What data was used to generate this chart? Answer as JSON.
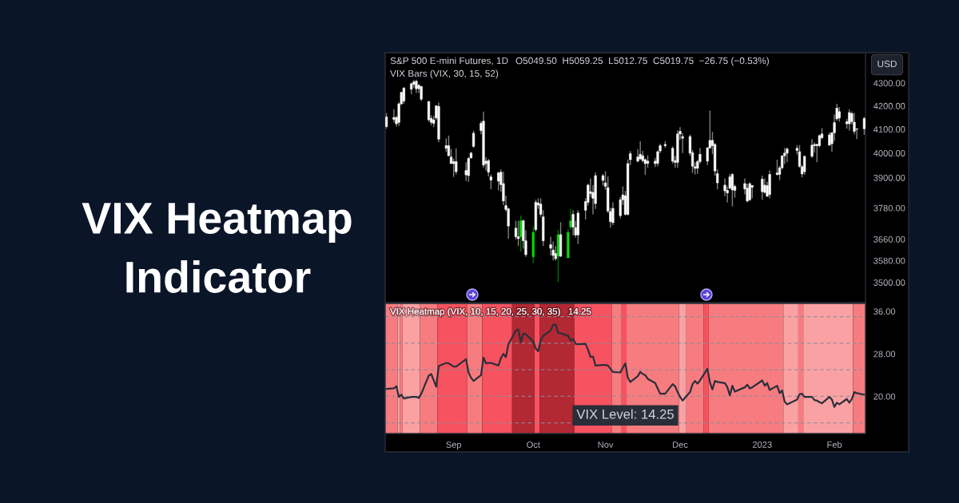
{
  "chart_data": [
    {
      "type": "other",
      "title": "VIX Heatmap Indicator"
    },
    {
      "type": "candlestick",
      "title": "S&P 500 E-mini Futures, 1D",
      "subtitle": "VIX Bars (VIX, 30, 15, 52)",
      "annotations": [
        "O5049.50  H5059.25  L5012.75  C5019.75  −26.75 (−0.53%)",
        "USD"
      ],
      "x": [
        "2022-08-05",
        "2022-08-08",
        "2022-08-09",
        "2022-08-10",
        "2022-08-11",
        "2022-08-12",
        "2022-08-15",
        "2022-08-16",
        "2022-08-17",
        "2022-08-18",
        "2022-08-19",
        "2022-08-22",
        "2022-08-23",
        "2022-08-24",
        "2022-08-25",
        "2022-08-26",
        "2022-08-29",
        "2022-08-30",
        "2022-08-31",
        "2022-09-01",
        "2022-09-02",
        "2022-09-06",
        "2022-09-07",
        "2022-09-08",
        "2022-09-09",
        "2022-09-12",
        "2022-09-13",
        "2022-09-14",
        "2022-09-15",
        "2022-09-16",
        "2022-09-19",
        "2022-09-20",
        "2022-09-21",
        "2022-09-22",
        "2022-09-23",
        "2022-09-26",
        "2022-09-27",
        "2022-09-28",
        "2022-09-29",
        "2022-09-30",
        "2022-10-03",
        "2022-10-04",
        "2022-10-05",
        "2022-10-06",
        "2022-10-07",
        "2022-10-10",
        "2022-10-11",
        "2022-10-12",
        "2022-10-13",
        "2022-10-14",
        "2022-10-17",
        "2022-10-18",
        "2022-10-19",
        "2022-10-20",
        "2022-10-21",
        "2022-10-24",
        "2022-10-25",
        "2022-10-26",
        "2022-10-27",
        "2022-10-28",
        "2022-10-31",
        "2022-11-01",
        "2022-11-02",
        "2022-11-03",
        "2022-11-04",
        "2022-11-07",
        "2022-11-08",
        "2022-11-09",
        "2022-11-10",
        "2022-11-11",
        "2022-11-14",
        "2022-11-15",
        "2022-11-16",
        "2022-11-17",
        "2022-11-18",
        "2022-11-21",
        "2022-11-22",
        "2022-11-23",
        "2022-11-25",
        "2022-11-28",
        "2022-11-29",
        "2022-11-30",
        "2022-12-01",
        "2022-12-02",
        "2022-12-05",
        "2022-12-06",
        "2022-12-07",
        "2022-12-08",
        "2022-12-09",
        "2022-12-12",
        "2022-12-13",
        "2022-12-14",
        "2022-12-15",
        "2022-12-16",
        "2022-12-19",
        "2022-12-20",
        "2022-12-21",
        "2022-12-22",
        "2022-12-23",
        "2022-12-27",
        "2022-12-28",
        "2022-12-29",
        "2022-12-30",
        "2023-01-03",
        "2023-01-04",
        "2023-01-05",
        "2023-01-06",
        "2023-01-09",
        "2023-01-10",
        "2023-01-11",
        "2023-01-12",
        "2023-01-13",
        "2023-01-17",
        "2023-01-18",
        "2023-01-19",
        "2023-01-20",
        "2023-01-23",
        "2023-01-24",
        "2023-01-25",
        "2023-01-26",
        "2023-01-27",
        "2023-01-30",
        "2023-01-31",
        "2023-02-01",
        "2023-02-02",
        "2023-02-03",
        "2023-02-06",
        "2023-02-07",
        "2023-02-08",
        "2023-02-09",
        "2023-02-10",
        "2023-02-13"
      ],
      "ohlc": [
        [
          4111,
          4169,
          4102,
          4152
        ],
        [
          4142,
          4186,
          4129,
          4150
        ],
        [
          4123,
          4157,
          4111,
          4150
        ],
        [
          4129,
          4215,
          4114,
          4209
        ],
        [
          4209,
          4261,
          4203,
          4259
        ],
        [
          4221,
          4282,
          4209,
          4278
        ],
        [
          4273,
          4302,
          4250,
          4297
        ],
        [
          4294,
          4314,
          4280,
          4305
        ],
        [
          4275,
          4314,
          4256,
          4308
        ],
        [
          4275,
          4297,
          4256,
          4290
        ],
        [
          4229,
          4287,
          4221,
          4285
        ],
        [
          4140,
          4221,
          4132,
          4219
        ],
        [
          4129,
          4159,
          4117,
          4146
        ],
        [
          4125,
          4157,
          4109,
          4140
        ],
        [
          4148,
          4203,
          4140,
          4200
        ],
        [
          4058,
          4215,
          4045,
          4198
        ],
        [
          4020,
          4062,
          4006,
          4031
        ],
        [
          3989,
          4073,
          3989,
          4031
        ],
        [
          3957,
          4017,
          3957,
          3984
        ],
        [
          3957,
          3978,
          3903,
          3965
        ],
        [
          3924,
          4020,
          3913,
          3965
        ],
        [
          3911,
          3962,
          3886,
          3929
        ],
        [
          3908,
          3984,
          3883,
          3978
        ],
        [
          3980,
          4006,
          3978,
          4000
        ],
        [
          4028,
          4094,
          4022,
          4083
        ],
        [
          4094,
          4134,
          4078,
          4125
        ],
        [
          3951,
          4175,
          3940,
          4134
        ],
        [
          3957,
          3984,
          3929,
          3967
        ],
        [
          3922,
          3976,
          3905,
          3969
        ],
        [
          3890,
          3913,
          3854,
          3903
        ],
        [
          3886,
          3924,
          3849,
          3919
        ],
        [
          3872,
          3933,
          3844,
          3922
        ],
        [
          3807,
          3924,
          3791,
          3876
        ],
        [
          3774,
          3828,
          3766,
          3789
        ],
        [
          3710,
          3781,
          3662,
          3776
        ],
        [
          3669,
          3730,
          3659,
          3702
        ],
        [
          3662,
          3730,
          3634,
          3669
        ],
        [
          3669,
          3750,
          3614,
          3730
        ],
        [
          3654,
          3735,
          3624,
          3730
        ],
        [
          3602,
          3694,
          3594,
          3654
        ],
        [
          3594,
          3709,
          3570,
          3686
        ],
        [
          3696,
          3812,
          3689,
          3802
        ],
        [
          3791,
          3818,
          3776,
          3799
        ],
        [
          3755,
          3818,
          3745,
          3795
        ],
        [
          3654,
          3771,
          3634,
          3745
        ],
        [
          3626,
          3669,
          3599,
          3639
        ],
        [
          3599,
          3652,
          3580,
          3619
        ],
        [
          3587,
          3634,
          3580,
          3606
        ],
        [
          3596,
          3696,
          3501,
          3677
        ],
        [
          3596,
          3725,
          3594,
          3677
        ],
        [
          3590,
          3699,
          3589,
          3686
        ],
        [
          3706,
          3776,
          3696,
          3730
        ],
        [
          3706,
          3771,
          3674,
          3755
        ],
        [
          3676,
          3730,
          3666,
          3704
        ],
        [
          3676,
          3771,
          3642,
          3760
        ],
        [
          3771,
          3818,
          3735,
          3805
        ],
        [
          3802,
          3876,
          3789,
          3870
        ],
        [
          3837,
          3897,
          3823,
          3844
        ],
        [
          3818,
          3870,
          3755,
          3841
        ],
        [
          3797,
          3921,
          3776,
          3908
        ],
        [
          3889,
          3915,
          3868,
          3908
        ],
        [
          3865,
          3926,
          3851,
          3879
        ],
        [
          3768,
          3905,
          3760,
          3860
        ],
        [
          3727,
          3781,
          3704,
          3766
        ],
        [
          3723,
          3802,
          3713,
          3778
        ],
        [
          3750,
          3823,
          3740,
          3812
        ],
        [
          3812,
          3865,
          3792,
          3831
        ],
        [
          3755,
          3847,
          3750,
          3828
        ],
        [
          3755,
          3973,
          3750,
          3957
        ],
        [
          3973,
          4008,
          3951,
          3998
        ],
        [
          3967,
          4017,
          3962,
          3984
        ],
        [
          3976,
          4050,
          3973,
          3995
        ],
        [
          3969,
          4009,
          3962,
          3989
        ],
        [
          3957,
          3978,
          3911,
          3973
        ],
        [
          3958,
          3991,
          3940,
          3967
        ],
        [
          3957,
          3980,
          3943,
          3967
        ],
        [
          3958,
          4011,
          3946,
          4006
        ],
        [
          4009,
          4039,
          4000,
          4031
        ],
        [
          4031,
          4050,
          4022,
          4036
        ],
        [
          3967,
          4028,
          3957,
          4020
        ],
        [
          3962,
          3989,
          3940,
          3969
        ],
        [
          3962,
          4094,
          3940,
          4080
        ],
        [
          4080,
          4109,
          4056,
          4091
        ],
        [
          4062,
          4083,
          4000,
          4069
        ],
        [
          4000,
          4078,
          3989,
          4069
        ],
        [
          3946,
          4013,
          3919,
          4002
        ],
        [
          3938,
          3962,
          3913,
          3944
        ],
        [
          3938,
          3973,
          3915,
          3965
        ],
        [
          3965,
          4022,
          3957,
          3995
        ],
        [
          3967,
          4024,
          3951,
          4022
        ],
        [
          4022,
          4180,
          4017,
          4053
        ],
        [
          4031,
          4089,
          3995,
          4053
        ],
        [
          3927,
          4042,
          3908,
          4036
        ],
        [
          3879,
          3933,
          3854,
          3916
        ],
        [
          3847,
          3897,
          3826,
          3870
        ],
        [
          3839,
          3865,
          3802,
          3849
        ],
        [
          3858,
          3915,
          3854,
          3903
        ],
        [
          3851,
          3918,
          3786,
          3913
        ],
        [
          3849,
          3872,
          3820,
          3865
        ],
        [
          3855,
          3897,
          3833,
          3876
        ],
        [
          3807,
          3876,
          3802,
          3858
        ],
        [
          3812,
          3881,
          3807,
          3876
        ],
        [
          3862,
          3870,
          3818,
          3868
        ],
        [
          3844,
          3908,
          3812,
          3894
        ],
        [
          3841,
          3897,
          3836,
          3870
        ],
        [
          3826,
          3883,
          3823,
          3868
        ],
        [
          3833,
          3929,
          3818,
          3913
        ],
        [
          3913,
          3973,
          3908,
          3919
        ],
        [
          3913,
          3948,
          3890,
          3940
        ],
        [
          3940,
          3991,
          3933,
          3989
        ],
        [
          3989,
          4022,
          3955,
          4000
        ],
        [
          4000,
          4024,
          3962,
          4017
        ],
        [
          4011,
          4033,
          3995,
          4020
        ],
        [
          3946,
          4033,
          3940,
          4006
        ],
        [
          3915,
          3951,
          3901,
          3944
        ],
        [
          3924,
          3989,
          3911,
          3987
        ],
        [
          3987,
          4058,
          3980,
          4033
        ],
        [
          4031,
          4045,
          4002,
          4036
        ],
        [
          4031,
          4039,
          3962,
          4036
        ],
        [
          4031,
          4078,
          4024,
          4073
        ],
        [
          4064,
          4105,
          4058,
          4080
        ],
        [
          4033,
          4087,
          4031,
          4076
        ],
        [
          4039,
          4087,
          4006,
          4085
        ],
        [
          4085,
          4163,
          4051,
          4128
        ],
        [
          4144,
          4209,
          4136,
          4190
        ],
        [
          4148,
          4195,
          4132,
          4175
        ],
        [
          4123,
          4143,
          4102,
          4132
        ],
        [
          4123,
          4186,
          4094,
          4171
        ],
        [
          4132,
          4175,
          4121,
          4167
        ],
        [
          4091,
          4169,
          4078,
          4130
        ],
        [
          4100,
          4102,
          4058,
          4102
        ],
        [
          4102,
          4152,
          4076,
          4146
        ]
      ],
      "colors": [
        "#ffffff",
        "#ffffff",
        "#ffffff",
        "#ffffff",
        "#ffffff",
        "#ffffff",
        "#ffffff",
        "#ffffff",
        "#ffffff",
        "#ffffff",
        "#ffffff",
        "#ffffff",
        "#ffffff",
        "#ffffff",
        "#ffffff",
        "#ffffff",
        "#ffffff",
        "#ffffff",
        "#ffffff",
        "#ffffff",
        "#ffffff",
        "#ffffff",
        "#ffffff",
        "#ffffff",
        "#ffffff",
        "#ffffff",
        "#ffffff",
        "#ffffff",
        "#ffffff",
        "#ffffff",
        "#ffffff",
        "#ffffff",
        "#ffffff",
        "#ffffff",
        "#ffffff",
        "#ffffff",
        "#ffffff",
        "#00dd00",
        "#ffffff",
        "#ffffff",
        "#00dd00",
        "#ffffff",
        "#ffffff",
        "#ffffff",
        "#ffffff",
        "#ffffff",
        "#ffffff",
        "#ffffff",
        "#00dd00",
        "#ffffff",
        "#00dd00",
        "#00dd00",
        "#ffffff",
        "#ffffff",
        "#ffffff",
        "#ffffff",
        "#ffffff",
        "#ffffff",
        "#ffffff",
        "#ffffff",
        "#ffffff",
        "#ffffff",
        "#ffffff",
        "#ffffff",
        "#ffffff",
        "#ffffff",
        "#ffffff",
        "#ffffff",
        "#ffffff",
        "#ffffff",
        "#ffffff",
        "#ffffff",
        "#ffffff",
        "#ffffff",
        "#ffffff",
        "#ffffff",
        "#ffffff",
        "#ffffff",
        "#ffffff",
        "#ffffff",
        "#ffffff",
        "#ffffff",
        "#ffffff",
        "#ffffff",
        "#ffffff",
        "#ffffff",
        "#ffffff",
        "#ffffff",
        "#ffffff",
        "#ffffff",
        "#ffffff",
        "#ffffff",
        "#ffffff",
        "#ffffff",
        "#ffffff",
        "#ffffff",
        "#ffffff",
        "#ffffff",
        "#ffffff",
        "#ffffff",
        "#ffffff",
        "#ffffff",
        "#ffffff",
        "#ffffff",
        "#ffffff",
        "#ffffff",
        "#ffffff",
        "#ffffff",
        "#ffffff",
        "#ffffff",
        "#ffffff",
        "#ffffff",
        "#ffffff",
        "#ffffff",
        "#ffffff",
        "#ffffff",
        "#ffffff",
        "#ffffff",
        "#ffffff",
        "#ffffff",
        "#ffffff",
        "#ffffff",
        "#ffffff",
        "#ffffff",
        "#ffffff",
        "#ffffff",
        "#ffffff",
        "#ffffff",
        "#ffffff",
        "#ffffff",
        "#ffffff",
        "#ffffff"
      ],
      "log": "y",
      "xlim": [
        "2022-08-04T12:00",
        "2023-02-13T12:00"
      ],
      "ylim": [
        3428,
        4437
      ],
      "yticks": [
        {
          "value": 3500,
          "label": "3500.00"
        },
        {
          "value": 3580,
          "label": "3580.00"
        },
        {
          "value": 3660,
          "label": "3660.00"
        },
        {
          "value": 3780,
          "label": "3780.00"
        },
        {
          "value": 3900,
          "label": "3900.00"
        },
        {
          "value": 4000,
          "label": "4000.00"
        },
        {
          "value": 4100,
          "label": "4100.00"
        },
        {
          "value": 4200,
          "label": "4200.00"
        },
        {
          "value": 4300,
          "label": "4300.00"
        }
      ]
    },
    {
      "type": "line",
      "title": "VIX Heatmap (VIX, 10, 15, 20, 25, 30, 35)",
      "annotations": [
        "14.25",
        "VIX Level: 14.25"
      ],
      "x": [
        "2022-08-05",
        "2022-08-08",
        "2022-08-09",
        "2022-08-10",
        "2022-08-11",
        "2022-08-12",
        "2022-08-15",
        "2022-08-16",
        "2022-08-17",
        "2022-08-18",
        "2022-08-19",
        "2022-08-22",
        "2022-08-23",
        "2022-08-24",
        "2022-08-25",
        "2022-08-26",
        "2022-08-29",
        "2022-08-30",
        "2022-08-31",
        "2022-09-01",
        "2022-09-02",
        "2022-09-06",
        "2022-09-07",
        "2022-09-08",
        "2022-09-09",
        "2022-09-12",
        "2022-09-13",
        "2022-09-14",
        "2022-09-15",
        "2022-09-16",
        "2022-09-19",
        "2022-09-20",
        "2022-09-21",
        "2022-09-22",
        "2022-09-23",
        "2022-09-26",
        "2022-09-27",
        "2022-09-28",
        "2022-09-29",
        "2022-09-30",
        "2022-10-03",
        "2022-10-04",
        "2022-10-05",
        "2022-10-06",
        "2022-10-07",
        "2022-10-10",
        "2022-10-11",
        "2022-10-12",
        "2022-10-13",
        "2022-10-14",
        "2022-10-17",
        "2022-10-18",
        "2022-10-19",
        "2022-10-20",
        "2022-10-21",
        "2022-10-24",
        "2022-10-25",
        "2022-10-26",
        "2022-10-27",
        "2022-10-28",
        "2022-10-31",
        "2022-11-01",
        "2022-11-02",
        "2022-11-03",
        "2022-11-04",
        "2022-11-07",
        "2022-11-08",
        "2022-11-09",
        "2022-11-10",
        "2022-11-11",
        "2022-11-14",
        "2022-11-15",
        "2022-11-16",
        "2022-11-17",
        "2022-11-18",
        "2022-11-21",
        "2022-11-22",
        "2022-11-23",
        "2022-11-25",
        "2022-11-28",
        "2022-11-29",
        "2022-11-30",
        "2022-12-01",
        "2022-12-02",
        "2022-12-05",
        "2022-12-06",
        "2022-12-07",
        "2022-12-08",
        "2022-12-09",
        "2022-12-12",
        "2022-12-13",
        "2022-12-14",
        "2022-12-15",
        "2022-12-16",
        "2022-12-19",
        "2022-12-20",
        "2022-12-21",
        "2022-12-22",
        "2022-12-23",
        "2022-12-27",
        "2022-12-28",
        "2022-12-29",
        "2022-12-30",
        "2023-01-03",
        "2023-01-04",
        "2023-01-05",
        "2023-01-06",
        "2023-01-09",
        "2023-01-10",
        "2023-01-11",
        "2023-01-12",
        "2023-01-13",
        "2023-01-17",
        "2023-01-18",
        "2023-01-19",
        "2023-01-20",
        "2023-01-23",
        "2023-01-24",
        "2023-01-25",
        "2023-01-26",
        "2023-01-27",
        "2023-01-30",
        "2023-01-31",
        "2023-02-01",
        "2023-02-02",
        "2023-02-03",
        "2023-02-06",
        "2023-02-07",
        "2023-02-08",
        "2023-02-09",
        "2023-02-10",
        "2023-02-13"
      ],
      "series": [
        {
          "color": "#2b2f3a",
          "values": [
            21.4,
            21.5,
            21.9,
            19.9,
            20.3,
            19.6,
            19.9,
            19.9,
            19.9,
            19.7,
            20.5,
            23.9,
            24.2,
            23.0,
            21.8,
            25.7,
            26.3,
            26.2,
            25.9,
            25.6,
            25.6,
            27.0,
            24.5,
            23.5,
            22.9,
            24.0,
            27.3,
            26.2,
            26.3,
            26.3,
            25.8,
            27.2,
            28.0,
            27.4,
            29.8,
            32.4,
            32.6,
            30.2,
            31.8,
            31.7,
            30.3,
            29.0,
            28.5,
            30.5,
            31.4,
            32.4,
            33.5,
            33.5,
            31.9,
            31.9,
            31.4,
            30.5,
            30.8,
            29.9,
            29.8,
            29.9,
            28.8,
            27.4,
            27.5,
            25.8,
            25.9,
            25.9,
            25.8,
            25.2,
            24.6,
            24.5,
            25.4,
            26.2,
            23.5,
            22.7,
            23.8,
            24.6,
            24.2,
            24.0,
            23.3,
            22.5,
            21.5,
            20.5,
            20.5,
            22.3,
            21.9,
            20.8,
            19.9,
            19.2,
            20.8,
            22.3,
            22.9,
            22.4,
            23.0,
            25.2,
            22.6,
            21.3,
            22.9,
            22.7,
            22.5,
            21.7,
            20.2,
            22.0,
            20.9,
            21.7,
            22.2,
            21.5,
            21.7,
            23.0,
            22.0,
            22.5,
            21.2,
            22.0,
            20.6,
            21.1,
            19.0,
            18.5,
            19.4,
            20.4,
            20.5,
            19.9,
            19.9,
            19.3,
            19.2,
            18.9,
            18.7,
            19.9,
            19.4,
            18.0,
            18.8,
            18.5,
            19.5,
            18.8,
            19.5,
            20.8,
            20.6,
            20.3
          ]
        }
      ],
      "xlim": [
        "2022-08-04T12:00",
        "2023-02-13T12:00"
      ],
      "xticks": [
        {
          "value": "2022-09-01",
          "label": "Sep"
        },
        {
          "value": "2022-10-03",
          "label": "Oct"
        },
        {
          "value": "2022-11-01",
          "label": "Nov"
        },
        {
          "value": "2022-12-01",
          "label": "Dec"
        },
        {
          "value": "2023-01-03",
          "label": "2023"
        },
        {
          "value": "2023-02-01",
          "label": "Feb"
        }
      ],
      "ylim": [
        13.0,
        37.5
      ],
      "yticks": [
        {
          "value": 20,
          "label": "20.00"
        },
        {
          "value": 28,
          "label": "28.00"
        },
        {
          "value": 36,
          "label": "36.00"
        }
      ],
      "ref_lines": [
        {
          "axis": "y",
          "value": 15,
          "color": "#8a8d96",
          "line_style": "dashed"
        },
        {
          "axis": "y",
          "value": 20,
          "color": "#8a8d96",
          "line_style": "dashed"
        },
        {
          "axis": "y",
          "value": 25,
          "color": "#8a8d96",
          "line_style": "dashed"
        },
        {
          "axis": "y",
          "value": 30,
          "color": "#8a8d96",
          "line_style": "dashed"
        },
        {
          "axis": "y",
          "value": 35,
          "color": "#8a8d96",
          "line_style": "dashed"
        }
      ],
      "bands": [
        {
          "axis": "x",
          "from": "2022-08-04T12:00",
          "to": "2022-08-09T12:00",
          "color": "#f77c80"
        },
        {
          "axis": "x",
          "from": "2022-08-09T12:00",
          "to": "2022-08-10T12:00",
          "color": "#faa1a4"
        },
        {
          "axis": "x",
          "from": "2022-08-10T12:00",
          "to": "2022-08-11T12:00",
          "color": "#f77c80"
        },
        {
          "axis": "x",
          "from": "2022-08-11T12:00",
          "to": "2022-08-18T12:00",
          "color": "#faa1a4"
        },
        {
          "axis": "x",
          "from": "2022-08-18T12:00",
          "to": "2022-08-25T12:00",
          "color": "#f77c80"
        },
        {
          "axis": "x",
          "from": "2022-08-25T12:00",
          "to": "2022-09-06T12:00",
          "color": "#f7525f"
        },
        {
          "axis": "x",
          "from": "2022-09-06T12:00",
          "to": "2022-09-12T12:00",
          "color": "#f77c80"
        },
        {
          "axis": "x",
          "from": "2022-09-12T12:00",
          "to": "2022-09-24T12:00",
          "color": "#f7525f"
        },
        {
          "axis": "x",
          "from": "2022-09-24T12:00",
          "to": "2022-10-03T12:00",
          "color": "#b22833"
        },
        {
          "axis": "x",
          "from": "2022-10-03T12:00",
          "to": "2022-10-05T12:00",
          "color": "#f7525f"
        },
        {
          "axis": "x",
          "from": "2022-10-05T12:00",
          "to": "2022-10-19T12:00",
          "color": "#b22833"
        },
        {
          "axis": "x",
          "from": "2022-10-19T12:00",
          "to": "2022-11-03T12:00",
          "color": "#f7525f"
        },
        {
          "axis": "x",
          "from": "2022-11-03T12:00",
          "to": "2022-11-07T12:00",
          "color": "#f77c80"
        },
        {
          "axis": "x",
          "from": "2022-11-07T12:00",
          "to": "2022-11-09T12:00",
          "color": "#f7525f"
        },
        {
          "axis": "x",
          "from": "2022-11-09T12:00",
          "to": "2022-11-30T12:00",
          "color": "#f77c80"
        },
        {
          "axis": "x",
          "from": "2022-11-30T12:00",
          "to": "2022-12-03T12:00",
          "color": "#faa1a4"
        },
        {
          "axis": "x",
          "from": "2022-12-03T12:00",
          "to": "2022-12-10T12:00",
          "color": "#f77c80"
        },
        {
          "axis": "x",
          "from": "2022-12-10T12:00",
          "to": "2022-12-12T12:00",
          "color": "#f7525f"
        },
        {
          "axis": "x",
          "from": "2022-12-12T12:00",
          "to": "2023-01-11T12:00",
          "color": "#f77c80"
        },
        {
          "axis": "x",
          "from": "2023-01-11T12:00",
          "to": "2023-01-17T12:00",
          "color": "#faa1a4"
        },
        {
          "axis": "x",
          "from": "2023-01-17T12:00",
          "to": "2023-01-19T12:00",
          "color": "#f77c80"
        },
        {
          "axis": "x",
          "from": "2023-01-19T12:00",
          "to": "2023-02-08T12:00",
          "color": "#faa1a4"
        },
        {
          "axis": "x",
          "from": "2023-02-08T12:00",
          "to": "2023-02-13T12:00",
          "color": "#f77c80"
        }
      ]
    }
  ]
}
